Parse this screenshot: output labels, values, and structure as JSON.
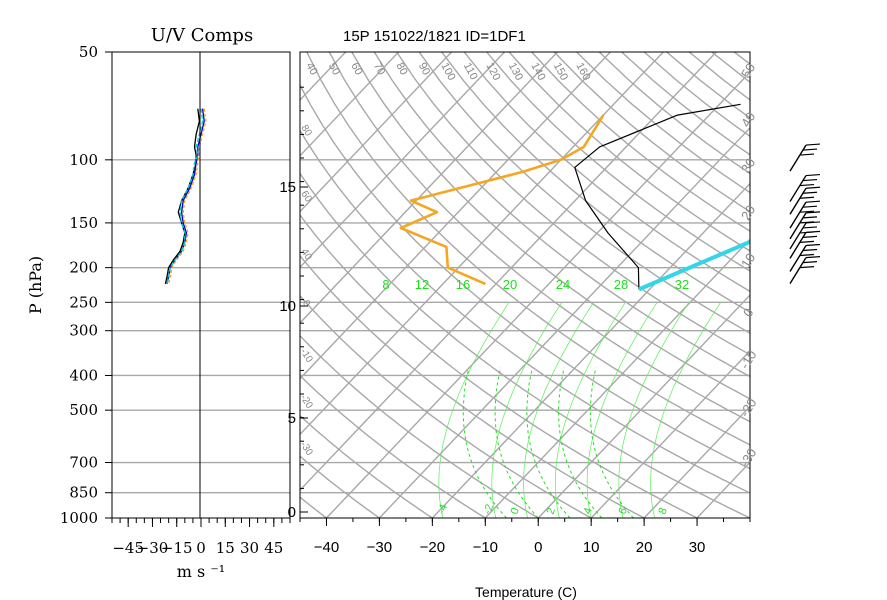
{
  "chart_data": [
    {
      "type": "line",
      "title": "U/V Comps",
      "xlabel": "m s ⁻¹",
      "ylabel": "P (hPa)",
      "xlim": [
        -55,
        55
      ],
      "xticks": [
        "−45",
        "−30",
        "−15",
        "0",
        "15",
        "30",
        "45"
      ],
      "pressure_ticks": [
        {
          "p": 50,
          "label": "50"
        },
        {
          "p": 100,
          "label": "100"
        },
        {
          "p": 150,
          "label": "150"
        },
        {
          "p": 200,
          "label": "200"
        },
        {
          "p": 250,
          "label": "250"
        },
        {
          "p": 300,
          "label": "300"
        },
        {
          "p": 400,
          "label": "400"
        },
        {
          "p": 500,
          "label": "500"
        },
        {
          "p": 700,
          "label": "700"
        },
        {
          "p": 850,
          "label": "850"
        },
        {
          "p": 1000,
          "label": "1000"
        }
      ],
      "series": [
        {
          "color": "#000000",
          "p": [
            72,
            78,
            85,
            92,
            97,
            102,
            110,
            120,
            130,
            140,
            150,
            160,
            170,
            180,
            190,
            200,
            212,
            222
          ],
          "values": [
            -2,
            -1,
            -3,
            -4,
            -3,
            -3,
            -5,
            -8,
            -12,
            -14,
            -12,
            -10,
            -11,
            -13,
            -17,
            -20,
            -21,
            -22
          ]
        },
        {
          "color": "#0000cc",
          "p": [
            72,
            78,
            85,
            92,
            97,
            102,
            110,
            120,
            130,
            140,
            150,
            160,
            170,
            180,
            190,
            200,
            212,
            222
          ],
          "values": [
            1,
            2,
            0,
            -2,
            -2,
            -3,
            -4,
            -7,
            -11,
            -12,
            -11,
            -9,
            -10,
            -12,
            -16,
            -19,
            -20,
            -21
          ]
        },
        {
          "color": "#f5a623",
          "p": [
            72,
            78,
            85,
            92,
            97,
            102,
            110,
            120,
            130,
            140,
            150,
            160,
            170,
            180,
            190,
            200,
            212,
            222
          ],
          "values": [
            2,
            3,
            1,
            -1,
            -1,
            -2,
            -3,
            -6,
            -10,
            -11,
            -10,
            -8,
            -9,
            -11,
            -15,
            -18,
            -19,
            -20
          ]
        },
        {
          "color": "#00cccc",
          "p": [
            72,
            78,
            85,
            92,
            97,
            102,
            110,
            120,
            130,
            140,
            150,
            160,
            170,
            180,
            190,
            200,
            212,
            222
          ],
          "values": [
            0,
            1,
            -1,
            -3,
            -2,
            -4,
            -5,
            -8,
            -12,
            -13,
            -12,
            -10,
            -10,
            -12,
            -16,
            -19,
            -20,
            -21
          ]
        }
      ]
    },
    {
      "type": "line",
      "title": "15P 151022/1821 ID=1DF1",
      "xlabel": "Temperature (C)",
      "xlim": [
        -45,
        40
      ],
      "xticks": [
        "−40",
        "−30",
        "−20",
        "−10",
        "0",
        "10",
        "20",
        "30"
      ],
      "height_ticks_km": [
        "0",
        "5",
        "10",
        "15"
      ],
      "theta_labels": [
        "40",
        "50",
        "60",
        "70",
        "80",
        "90",
        "100",
        "110",
        "120",
        "130",
        "140",
        "150",
        "160"
      ],
      "mixing_ratio_labels": [
        "8",
        "12",
        "16",
        "20",
        "24",
        "28",
        "32"
      ],
      "bottom_isotherm_labels": [
        "-4",
        "-2",
        "0",
        "2",
        "4",
        "6",
        "8"
      ],
      "side_labels_right": [
        "50",
        "40",
        "30",
        "20",
        "10",
        "0",
        "-10",
        "-20",
        "-30"
      ],
      "side_labels_left": [
        "80",
        "60",
        "40",
        "0",
        "-10",
        "-20",
        "-30"
      ],
      "series": [
        {
          "color": "#f5a623",
          "p": [
            75,
            92,
            100,
            108,
            130,
            140,
            155,
            175,
            200,
            222
          ],
          "values": [
            -60,
            -58,
            -60,
            -65,
            -81,
            -74,
            -78,
            -66,
            -62,
            -52
          ]
        },
        {
          "color": "#000000",
          "p": [
            70,
            75,
            92,
            105,
            130,
            160,
            200,
            230
          ],
          "values": [
            -36,
            -46,
            -55,
            -56,
            -48,
            -38,
            -26,
            -22
          ]
        },
        {
          "color": "#33d6e6",
          "p": [
            82,
            230
          ],
          "values": [
            20,
            -22
          ]
        }
      ],
      "wind_barbs": [
        {
          "p": 97
        },
        {
          "p": 118
        },
        {
          "p": 128
        },
        {
          "p": 140
        },
        {
          "p": 150
        },
        {
          "p": 160
        },
        {
          "p": 170
        },
        {
          "p": 185
        },
        {
          "p": 200
        }
      ]
    }
  ]
}
